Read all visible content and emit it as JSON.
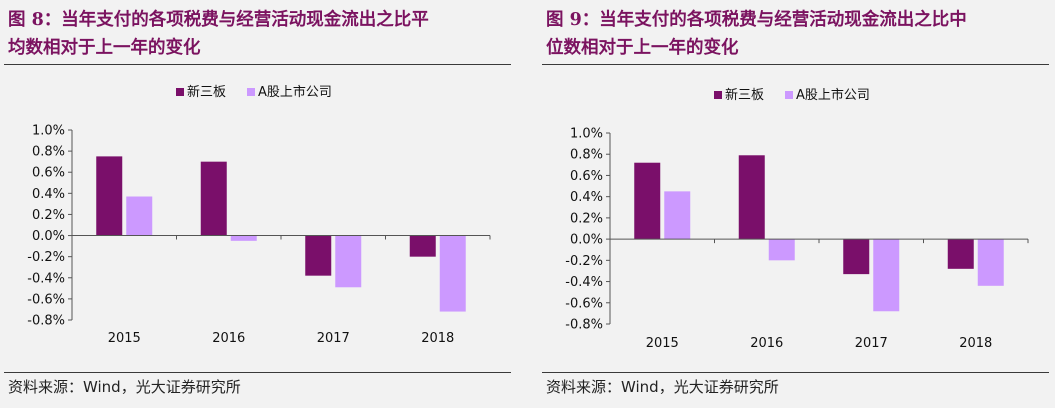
{
  "figures": [
    {
      "title_line1": "图 8：当年支付的各项税费与经营活动现金流出之比平",
      "title_line2": "均数相对于上一年的变化",
      "source": "资料来源：Wind，光大证券研究所"
    },
    {
      "title_line1": "图 9：当年支付的各项税费与经营活动现金流出之比中",
      "title_line2": "位数相对于上一年的变化",
      "source": "资料来源：Wind，光大证券研究所"
    }
  ],
  "colors": {
    "series1": "#7a0f6a",
    "series2": "#cc99ff",
    "title": "#7b1360"
  },
  "chart_data": [
    {
      "type": "bar",
      "categories": [
        "2015",
        "2016",
        "2017",
        "2018"
      ],
      "series": [
        {
          "name": "新三板",
          "values": [
            0.0075,
            0.007,
            -0.0038,
            -0.002
          ]
        },
        {
          "name": "A股上市公司",
          "values": [
            0.0037,
            -0.0005,
            -0.0049,
            -0.0072
          ]
        }
      ],
      "ylim": [
        -0.008,
        0.01
      ],
      "yticks": [
        "1.0%",
        "0.8%",
        "0.6%",
        "0.4%",
        "0.2%",
        "0.0%",
        "-0.2%",
        "-0.4%",
        "-0.6%",
        "-0.8%"
      ],
      "legend": "top"
    },
    {
      "type": "bar",
      "categories": [
        "2015",
        "2016",
        "2017",
        "2018"
      ],
      "series": [
        {
          "name": "新三板",
          "values": [
            0.0072,
            0.0079,
            -0.0033,
            -0.0028
          ]
        },
        {
          "name": "A股上市公司",
          "values": [
            0.0045,
            -0.002,
            -0.0068,
            -0.0044
          ]
        }
      ],
      "ylim": [
        -0.008,
        0.01
      ],
      "yticks": [
        "1.0%",
        "0.8%",
        "0.6%",
        "0.4%",
        "0.2%",
        "0.0%",
        "-0.2%",
        "-0.4%",
        "-0.6%",
        "-0.8%"
      ],
      "legend": "top"
    }
  ]
}
